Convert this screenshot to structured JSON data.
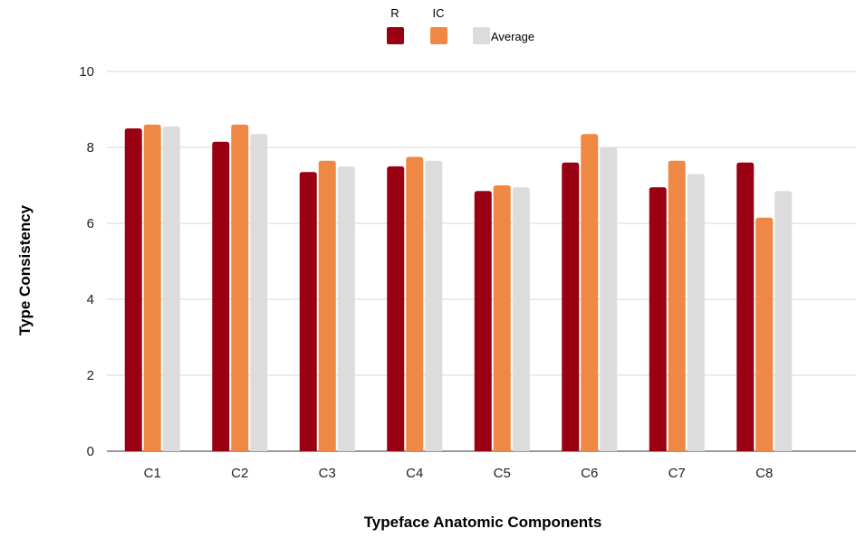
{
  "chart_data": {
    "type": "bar",
    "title": "",
    "xlabel": "Typeface Anatomic Components",
    "ylabel": "Type Consistency",
    "categories": [
      "C1",
      "C2",
      "C3",
      "C4",
      "C5",
      "C6",
      "C7",
      "C8"
    ],
    "ylim": [
      0,
      10
    ],
    "yticks": [
      "0",
      "2",
      "4",
      "6",
      "8",
      "10"
    ],
    "grid": true,
    "legend_position": "top",
    "series": [
      {
        "name": "R",
        "color": "#990011",
        "values": [
          8.5,
          8.15,
          7.35,
          7.5,
          6.85,
          7.6,
          6.95,
          7.6
        ]
      },
      {
        "name": "IC",
        "color": "#ee8844",
        "values": [
          8.6,
          8.6,
          7.65,
          7.75,
          7.0,
          8.35,
          7.65,
          6.15
        ]
      },
      {
        "name": "Average",
        "color": "#dcdcdc",
        "values": [
          8.55,
          8.35,
          7.5,
          7.65,
          6.95,
          8.0,
          7.3,
          6.85
        ]
      }
    ]
  }
}
